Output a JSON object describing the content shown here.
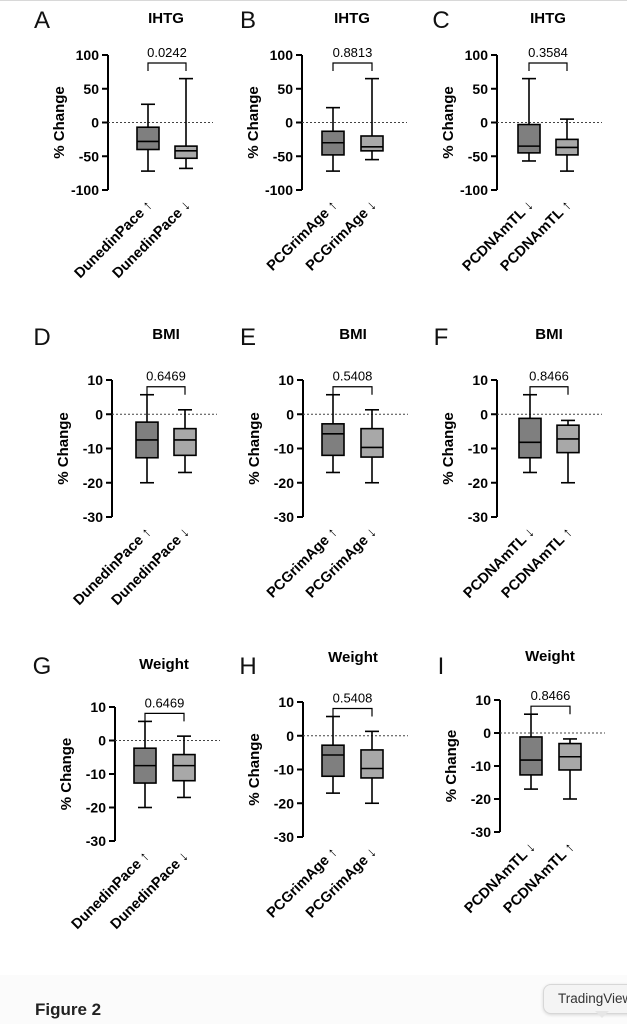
{
  "figure": {
    "caption": "Figure 2"
  },
  "watermark": {
    "label": "TradingView"
  },
  "colors": {
    "dark_box": "#7f7f7f",
    "light_box": "#a8a8a8",
    "line": "#000000",
    "zero_line": "#444444"
  },
  "chart_data": [
    {
      "panel": "A",
      "type": "box",
      "title": "IHTG",
      "ylabel": "% Change",
      "ylim": [
        -100,
        100
      ],
      "yticks": [
        "100",
        "50",
        "0",
        "-50",
        "-100"
      ],
      "ytick_values": [
        100,
        50,
        0,
        -50,
        -100
      ],
      "categories": [
        "DunedinPace ↑",
        "DunedinPace ↓"
      ],
      "pvalue": "0.0242",
      "boxes": [
        {
          "min": -72,
          "q1": -40,
          "median": -28,
          "q3": -7,
          "max": 27
        },
        {
          "min": -68,
          "q1": -53,
          "median": -42,
          "q3": -35,
          "max": 65
        }
      ]
    },
    {
      "panel": "B",
      "type": "box",
      "title": "IHTG",
      "ylabel": "% Change",
      "ylim": [
        -100,
        100
      ],
      "yticks": [
        "100",
        "50",
        "0",
        "-50",
        "-100"
      ],
      "ytick_values": [
        100,
        50,
        0,
        -50,
        -100
      ],
      "categories": [
        "PCGrimAge ↑",
        "PCGrimAge ↓"
      ],
      "pvalue": "0.8813",
      "boxes": [
        {
          "min": -72,
          "q1": -48,
          "median": -30,
          "q3": -13,
          "max": 22
        },
        {
          "min": -55,
          "q1": -42,
          "median": -36,
          "q3": -20,
          "max": 65
        }
      ]
    },
    {
      "panel": "C",
      "type": "box",
      "title": "IHTG",
      "ylabel": "% Change",
      "ylim": [
        -100,
        100
      ],
      "yticks": [
        "100",
        "50",
        "0",
        "-50",
        "-100"
      ],
      "ytick_values": [
        100,
        50,
        0,
        -50,
        -100
      ],
      "categories": [
        "PCDNAmTL ↓",
        "PCDNAmTL ↑"
      ],
      "pvalue": "0.3584",
      "boxes": [
        {
          "min": -57,
          "q1": -45,
          "median": -35,
          "q3": -3,
          "max": 65
        },
        {
          "min": -72,
          "q1": -48,
          "median": -37,
          "q3": -25,
          "max": 5
        }
      ]
    },
    {
      "panel": "D",
      "type": "box",
      "title": "BMI",
      "ylabel": "% Change",
      "ylim": [
        -30,
        10
      ],
      "yticks": [
        "10",
        "0",
        "-10",
        "-20",
        "-30"
      ],
      "ytick_values": [
        10,
        0,
        -10,
        -20,
        -30
      ],
      "categories": [
        "DunedinPace ↑",
        "DunedinPace ↓"
      ],
      "pvalue": "0.6469",
      "boxes": [
        {
          "min": -20,
          "q1": -12.7,
          "median": -7.5,
          "q3": -2.3,
          "max": 5.7
        },
        {
          "min": -17,
          "q1": -12,
          "median": -7.5,
          "q3": -4.2,
          "max": 1.3
        }
      ]
    },
    {
      "panel": "E",
      "type": "box",
      "title": "BMI",
      "ylabel": "% Change",
      "ylim": [
        -30,
        10
      ],
      "yticks": [
        "10",
        "0",
        "-10",
        "-20",
        "-30"
      ],
      "ytick_values": [
        10,
        0,
        -10,
        -20,
        -30
      ],
      "categories": [
        "PCGrimAge ↑",
        "PCGrimAge ↓"
      ],
      "pvalue": "0.5408",
      "boxes": [
        {
          "min": -17,
          "q1": -12,
          "median": -5.7,
          "q3": -2.8,
          "max": 5.7
        },
        {
          "min": -20,
          "q1": -12.5,
          "median": -9.7,
          "q3": -4.2,
          "max": 1.3
        }
      ]
    },
    {
      "panel": "F",
      "type": "box",
      "title": "BMI",
      "ylabel": "% Change",
      "ylim": [
        -30,
        10
      ],
      "yticks": [
        "10",
        "0",
        "-10",
        "-20",
        "-30"
      ],
      "ytick_values": [
        10,
        0,
        -10,
        -20,
        -30
      ],
      "categories": [
        "PCDNAmTL ↓",
        "PCDNAmTL ↑"
      ],
      "pvalue": "0.8466",
      "boxes": [
        {
          "min": -17,
          "q1": -12.7,
          "median": -8.2,
          "q3": -1.2,
          "max": 5.7
        },
        {
          "min": -20,
          "q1": -11.2,
          "median": -7.2,
          "q3": -3.2,
          "max": -1.8
        }
      ]
    },
    {
      "panel": "G",
      "type": "box",
      "title": "Weight",
      "ylabel": "% Change",
      "ylim": [
        -30,
        10
      ],
      "yticks": [
        "10",
        "0",
        "-10",
        "-20",
        "-30"
      ],
      "ytick_values": [
        10,
        0,
        -10,
        -20,
        -30
      ],
      "categories": [
        "DunedinPace ↑",
        "DunedinPace ↓"
      ],
      "pvalue": "0.6469",
      "boxes": [
        {
          "min": -20,
          "q1": -12.7,
          "median": -7.5,
          "q3": -2.3,
          "max": 5.7
        },
        {
          "min": -17,
          "q1": -12,
          "median": -7.5,
          "q3": -4.2,
          "max": 1.3
        }
      ]
    },
    {
      "panel": "H",
      "type": "box",
      "title": "Weight",
      "ylabel": "% Change",
      "ylim": [
        -30,
        10
      ],
      "yticks": [
        "10",
        "0",
        "-10",
        "-20",
        "-30"
      ],
      "ytick_values": [
        10,
        0,
        -10,
        -20,
        -30
      ],
      "categories": [
        "PCGrimAge ↑",
        "PCGrimAge ↓"
      ],
      "pvalue": "0.5408",
      "boxes": [
        {
          "min": -17,
          "q1": -12,
          "median": -5.7,
          "q3": -2.8,
          "max": 5.7
        },
        {
          "min": -20,
          "q1": -12.5,
          "median": -9.7,
          "q3": -4.2,
          "max": 1.3
        }
      ]
    },
    {
      "panel": "I",
      "type": "box",
      "title": "Weight",
      "ylabel": "% Change",
      "ylim": [
        -30,
        10
      ],
      "yticks": [
        "10",
        "0",
        "-10",
        "-20",
        "-30"
      ],
      "ytick_values": [
        10,
        0,
        -10,
        -20,
        -30
      ],
      "categories": [
        "PCDNAmTL ↓",
        "PCDNAmTL ↑"
      ],
      "pvalue": "0.8466",
      "boxes": [
        {
          "min": -17,
          "q1": -12.7,
          "median": -8.2,
          "q3": -1.2,
          "max": 5.7
        },
        {
          "min": -20,
          "q1": -11.2,
          "median": -7.2,
          "q3": -3.2,
          "max": -1.8
        }
      ]
    }
  ]
}
